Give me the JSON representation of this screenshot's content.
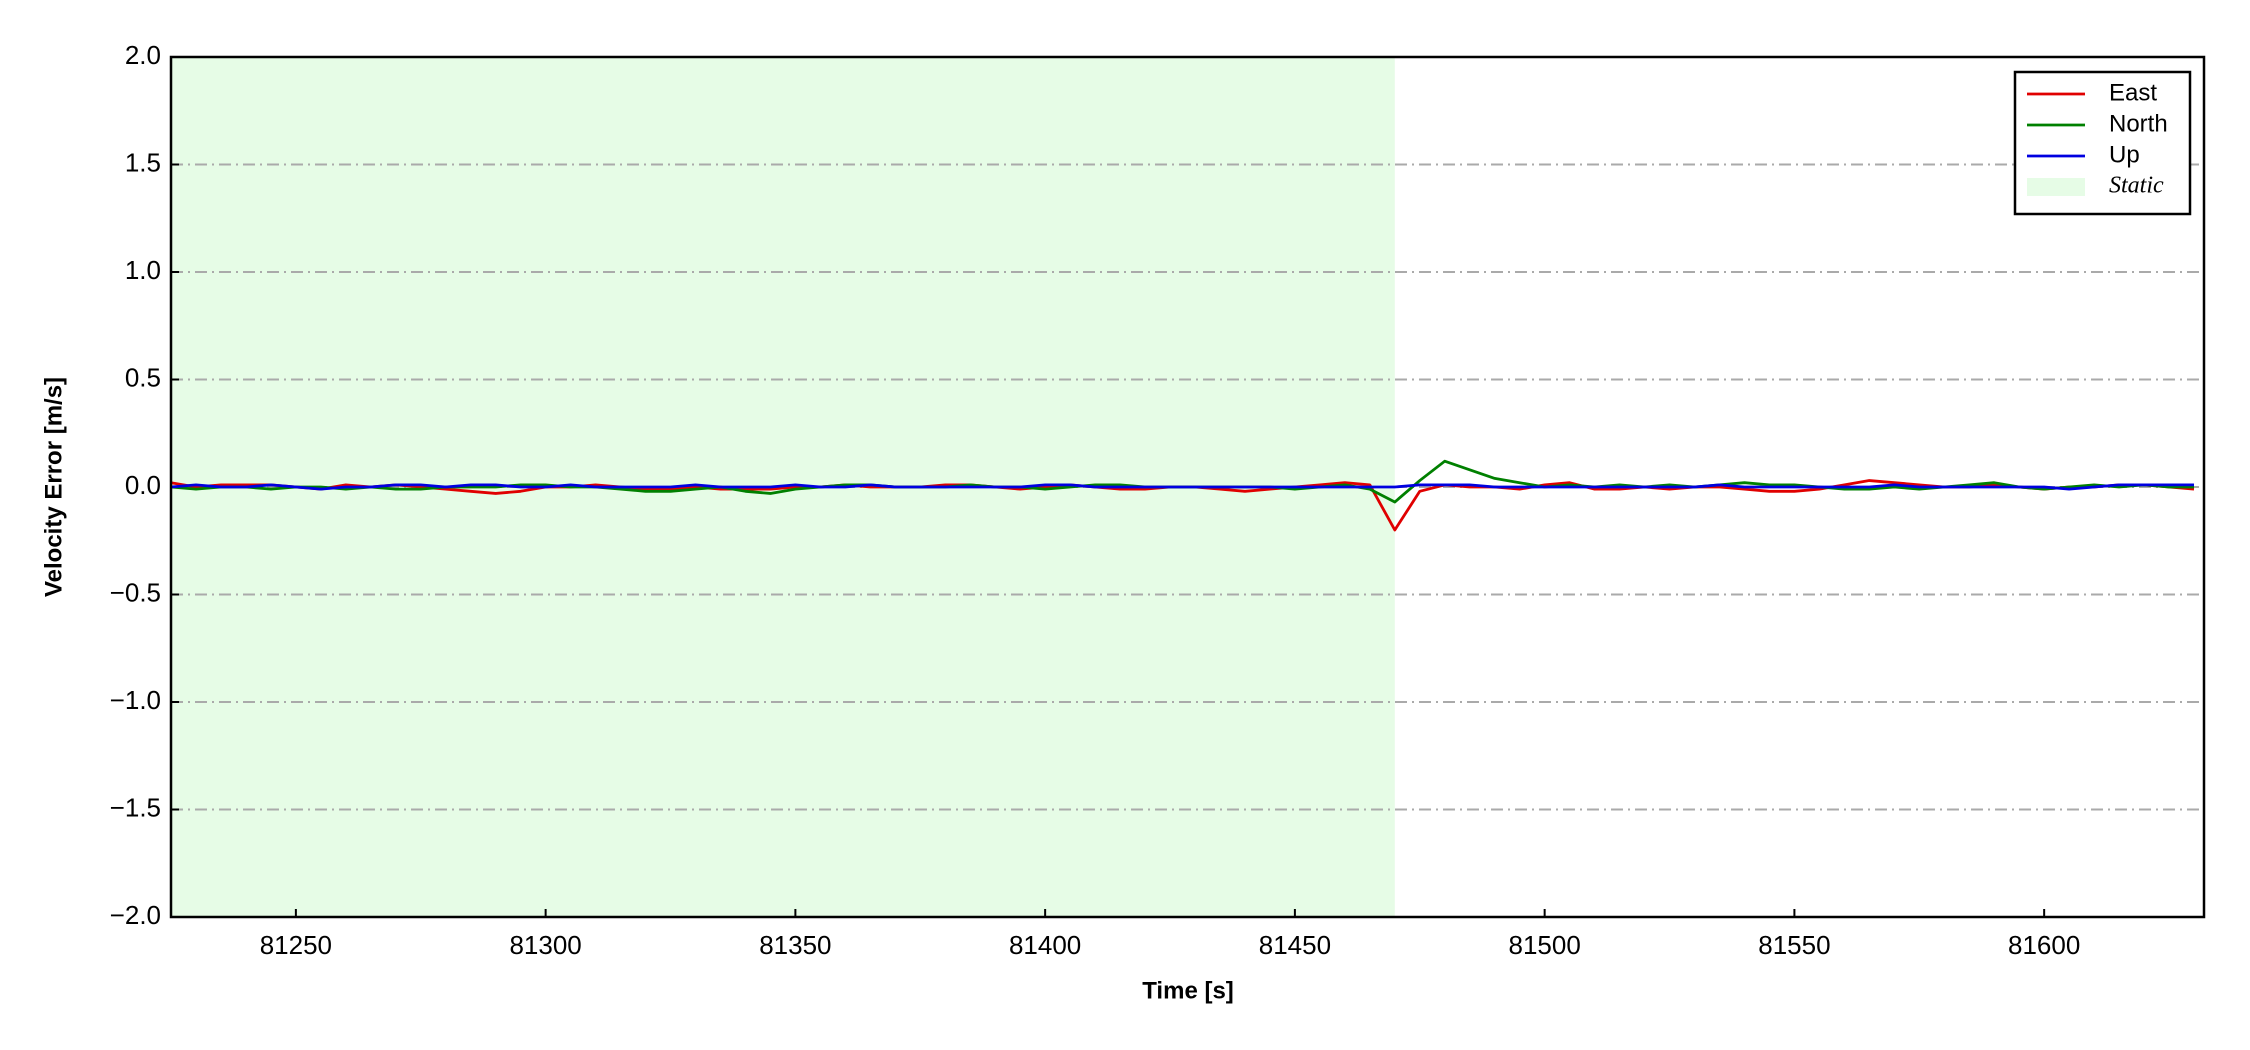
{
  "chart_data": {
    "type": "line",
    "xlabel": "Time [s]",
    "ylabel": "Velocity Error [m/s]",
    "x": [
      81225,
      81230,
      81235,
      81240,
      81245,
      81250,
      81255,
      81260,
      81265,
      81270,
      81275,
      81280,
      81285,
      81290,
      81295,
      81300,
      81305,
      81310,
      81315,
      81320,
      81325,
      81330,
      81335,
      81340,
      81345,
      81350,
      81355,
      81360,
      81365,
      81370,
      81375,
      81380,
      81385,
      81390,
      81395,
      81400,
      81405,
      81410,
      81415,
      81420,
      81425,
      81430,
      81435,
      81440,
      81445,
      81450,
      81455,
      81460,
      81465,
      81470,
      81475,
      81480,
      81485,
      81490,
      81495,
      81500,
      81505,
      81510,
      81515,
      81520,
      81525,
      81530,
      81535,
      81540,
      81545,
      81550,
      81555,
      81560,
      81565,
      81570,
      81575,
      81580,
      81585,
      81590,
      81595,
      81600,
      81605,
      81610,
      81615,
      81620,
      81625,
      81630
    ],
    "series": [
      {
        "name": "East",
        "color": "#e00000",
        "values": [
          0.02,
          0.0,
          0.01,
          0.01,
          0.01,
          0.0,
          -0.01,
          0.01,
          0.0,
          0.01,
          0.0,
          -0.01,
          -0.02,
          -0.03,
          -0.02,
          0.0,
          0.0,
          0.01,
          0.0,
          -0.01,
          -0.01,
          0.0,
          -0.01,
          -0.01,
          -0.01,
          0.0,
          0.0,
          0.01,
          0.0,
          0.0,
          0.0,
          0.01,
          0.01,
          0.0,
          -0.01,
          0.0,
          0.01,
          0.0,
          -0.01,
          -0.01,
          0.0,
          0.0,
          -0.01,
          -0.02,
          -0.01,
          0.0,
          0.01,
          0.02,
          0.01,
          -0.2,
          -0.02,
          0.01,
          0.0,
          0.0,
          -0.01,
          0.01,
          0.02,
          -0.01,
          -0.01,
          0.0,
          -0.01,
          0.0,
          0.0,
          -0.01,
          -0.02,
          -0.02,
          -0.01,
          0.01,
          0.03,
          0.02,
          0.01,
          0.0,
          0.0,
          0.01,
          0.0,
          -0.01,
          0.0,
          0.0,
          0.01,
          0.01,
          0.0,
          -0.01
        ]
      },
      {
        "name": "North",
        "color": "#008000",
        "values": [
          0.0,
          -0.01,
          0.0,
          0.0,
          -0.01,
          0.0,
          0.0,
          -0.01,
          0.0,
          -0.01,
          -0.01,
          0.0,
          0.0,
          0.0,
          0.01,
          0.01,
          0.0,
          0.0,
          -0.01,
          -0.02,
          -0.02,
          -0.01,
          0.0,
          -0.02,
          -0.03,
          -0.01,
          0.0,
          0.01,
          0.01,
          0.0,
          0.0,
          0.0,
          0.01,
          0.0,
          0.0,
          -0.01,
          0.0,
          0.01,
          0.01,
          0.0,
          0.0,
          0.0,
          0.0,
          0.0,
          0.0,
          -0.01,
          0.0,
          0.01,
          -0.01,
          -0.07,
          0.03,
          0.12,
          0.08,
          0.04,
          0.02,
          0.0,
          0.01,
          0.0,
          0.01,
          0.0,
          0.01,
          0.0,
          0.01,
          0.02,
          0.01,
          0.01,
          0.0,
          -0.01,
          -0.01,
          0.0,
          -0.01,
          0.0,
          0.01,
          0.02,
          0.0,
          -0.01,
          0.0,
          0.01,
          0.0,
          0.01,
          0.0,
          0.0
        ]
      },
      {
        "name": "Up",
        "color": "#0000e0",
        "values": [
          0.0,
          0.01,
          0.0,
          0.0,
          0.01,
          0.0,
          -0.01,
          0.0,
          0.0,
          0.01,
          0.01,
          0.0,
          0.01,
          0.01,
          0.0,
          0.0,
          0.01,
          0.0,
          0.0,
          0.0,
          0.0,
          0.01,
          0.0,
          0.0,
          0.0,
          0.01,
          0.0,
          0.0,
          0.01,
          0.0,
          0.0,
          0.0,
          0.0,
          0.0,
          0.0,
          0.01,
          0.01,
          0.0,
          0.0,
          0.0,
          0.0,
          0.0,
          0.0,
          0.0,
          0.0,
          0.0,
          0.0,
          0.0,
          0.0,
          0.0,
          0.01,
          0.01,
          0.01,
          0.0,
          0.0,
          0.0,
          0.0,
          0.0,
          0.0,
          0.0,
          0.0,
          0.0,
          0.01,
          0.0,
          0.0,
          0.0,
          0.0,
          0.0,
          0.0,
          0.01,
          0.0,
          0.0,
          0.0,
          0.0,
          0.0,
          0.0,
          -0.01,
          0.0,
          0.01,
          0.01,
          0.01,
          0.01
        ]
      }
    ],
    "shaded_regions": [
      {
        "name": "Static",
        "x": [
          81225,
          81470
        ],
        "color": "#e6fce6"
      }
    ],
    "xlim": [
      81225,
      81632
    ],
    "xticks": [
      81250,
      81300,
      81350,
      81400,
      81450,
      81500,
      81550,
      81600
    ],
    "ylim": [
      -2.0,
      2.0
    ],
    "yticks": [
      {
        "value": -2.0,
        "label": "−2.0"
      },
      {
        "value": -1.5,
        "label": "−1.5"
      },
      {
        "value": -1.0,
        "label": "−1.0"
      },
      {
        "value": -0.5,
        "label": "−0.5"
      },
      {
        "value": 0.0,
        "label": "0.0"
      },
      {
        "value": 0.5,
        "label": "0.5"
      },
      {
        "value": 1.0,
        "label": "1.0"
      },
      {
        "value": 1.5,
        "label": "1.5"
      },
      {
        "value": 2.0,
        "label": "2.0"
      }
    ],
    "grid": true,
    "legend": "upper right"
  }
}
